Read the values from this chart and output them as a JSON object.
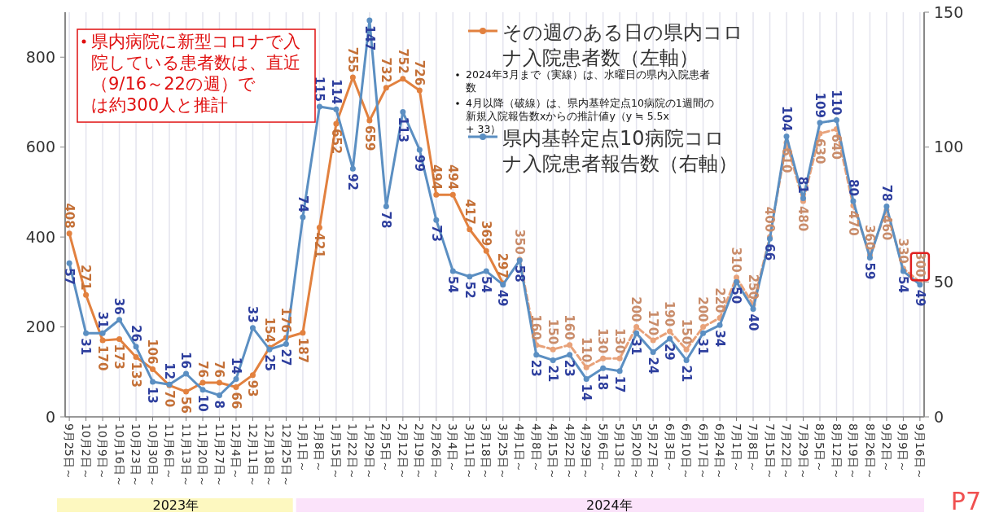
{
  "chart_data": {
    "type": "line",
    "categories": [
      "9月25日～",
      "10月2日～",
      "10月9日～",
      "10月16日～",
      "10月23日～",
      "10月30日～",
      "11月6日～",
      "11月13日～",
      "11月20日～",
      "11月27日～",
      "12月4日～",
      "12月11日～",
      "12月18日～",
      "12月25日～",
      "1月1日～",
      "1月8日～",
      "1月15日～",
      "1月22日～",
      "1月29日～",
      "2月5日～",
      "2月12日～",
      "2月19日～",
      "2月26日～",
      "3月4日～",
      "3月11日～",
      "3月18日～",
      "3月25日～",
      "4月1日～",
      "4月8日～",
      "4月15日～",
      "4月22日～",
      "4月29日～",
      "5月6日～",
      "5月13日～",
      "5月20日～",
      "5月27日～",
      "6月3日～",
      "6月10日～",
      "6月17日～",
      "6月24日～",
      "7月1日～",
      "7月8日～",
      "7月15日～",
      "7月22日～",
      "7月29日～",
      "8月5日～",
      "8月12日～",
      "8月19日～",
      "8月26日～",
      "9月2日～",
      "9月9日～",
      "9月16日～"
    ],
    "series": [
      {
        "name": "その週のある日の県内コロナ入院患者数（左軸）",
        "color": "#e2813f",
        "line_style": "solid",
        "values": [
          408,
          271,
          170,
          173,
          133,
          106,
          70,
          56,
          76,
          76,
          66,
          93,
          154,
          176,
          187,
          421,
          652,
          755,
          659,
          732,
          752,
          726,
          494,
          494,
          417,
          369,
          297,
          null,
          null,
          null,
          null,
          null,
          null,
          null,
          null,
          null,
          null,
          null,
          null,
          null,
          null,
          null,
          null,
          null,
          null,
          null,
          null,
          null,
          null,
          null,
          null,
          null
        ]
      },
      {
        "color": "#e8a27a",
        "line_style": "dashed",
        "values": [
          null,
          null,
          null,
          null,
          null,
          null,
          null,
          null,
          null,
          null,
          null,
          null,
          null,
          null,
          null,
          null,
          null,
          null,
          null,
          null,
          null,
          null,
          null,
          null,
          null,
          null,
          null,
          350,
          160,
          150,
          160,
          110,
          130,
          130,
          200,
          170,
          190,
          150,
          200,
          220,
          310,
          250,
          400,
          610,
          480,
          630,
          640,
          470,
          360,
          460,
          330,
          300
        ]
      },
      {
        "name": "県内基幹定点10病院コロナ入院患者報告数（右軸）",
        "color": "#5b8fc2",
        "axis": "y2",
        "line_style": "solid",
        "values": [
          57,
          31,
          31,
          36,
          26,
          13,
          12,
          16,
          10,
          8,
          14,
          33,
          25,
          27,
          74,
          115,
          114,
          92,
          147,
          78,
          113,
          99,
          73,
          54,
          52,
          54,
          49,
          58,
          23,
          21,
          23,
          14,
          18,
          17,
          31,
          24,
          29,
          21,
          31,
          34,
          50,
          40,
          66,
          104,
          81,
          109,
          110,
          80,
          59,
          78,
          54,
          49
        ]
      }
    ],
    "ylim": [
      0,
      900
    ],
    "yticks": [
      0,
      200,
      400,
      600,
      800
    ],
    "y2lim": [
      0,
      150
    ],
    "y2ticks": [
      0,
      50,
      100,
      150
    ],
    "grid": "x",
    "legend": "top",
    "marker": "circle",
    "data_labels": true,
    "annotations": [
      "県内病院に新型コロナで入院している患者数は、直近（9/16～22の週）では約300人と推計",
      "2024年3月まで（実線）は、水曜日の県内入院患者数",
      "4月以降（破線）は、県内基幹定点10病院の1週間の新規入院報告数xからの推計値y（y ≒ 5.5x + 33）",
      "2023年",
      "2024年",
      "P7"
    ]
  }
}
